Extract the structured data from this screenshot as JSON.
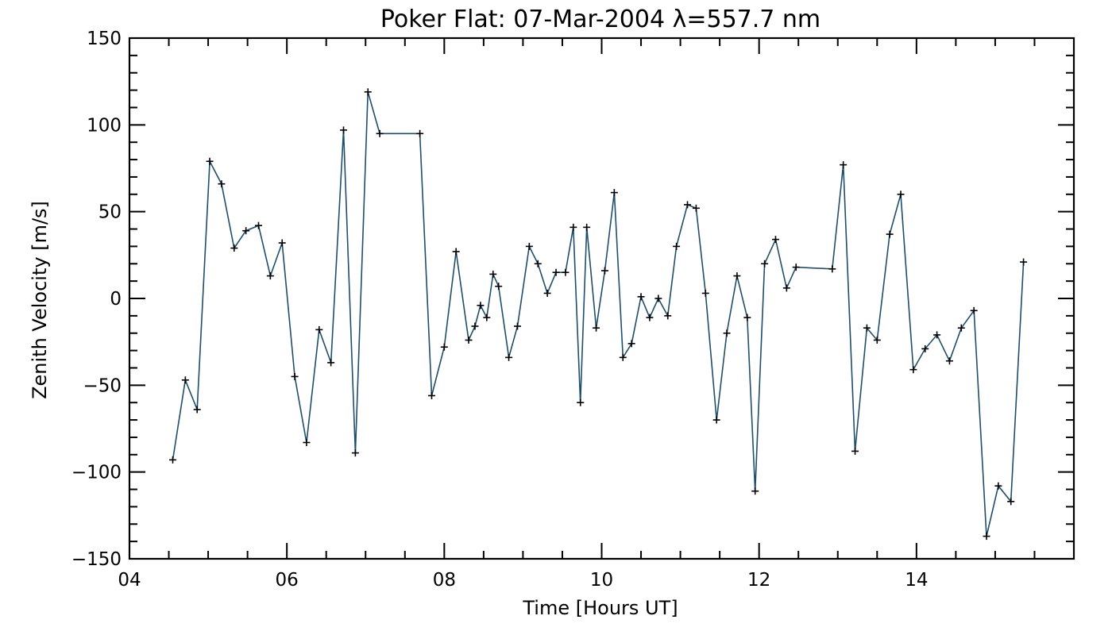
{
  "chart_data": {
    "type": "line",
    "title": "Poker Flat: 07-Mar-2004 λ=557.7 nm",
    "xlabel": "Time [Hours UT]",
    "ylabel": "Zenith Velocity [m/s]",
    "xlim": [
      4,
      16
    ],
    "ylim": [
      -150,
      150
    ],
    "x_ticks": [
      4,
      6,
      8,
      10,
      12,
      14
    ],
    "x_tick_labels": [
      "04",
      "06",
      "08",
      "10",
      "12",
      "14"
    ],
    "y_ticks": [
      -150,
      -100,
      -50,
      0,
      50,
      100,
      150
    ],
    "y_tick_labels": [
      "−150",
      "−100",
      "−50",
      "0",
      "50",
      "100",
      "150"
    ],
    "line_color": "#1f4e6b",
    "marker": "plus",
    "grid": false,
    "x": [
      4.55,
      4.71,
      4.86,
      5.02,
      5.17,
      5.33,
      5.48,
      5.64,
      5.79,
      5.94,
      6.1,
      6.25,
      6.41,
      6.56,
      6.72,
      6.87,
      7.03,
      7.18,
      7.69,
      7.84,
      8.0,
      8.15,
      8.31,
      8.39,
      8.46,
      8.54,
      8.62,
      8.69,
      8.82,
      8.93,
      9.08,
      9.19,
      9.31,
      9.42,
      9.54,
      9.64,
      9.73,
      9.81,
      9.93,
      10.04,
      10.16,
      10.27,
      10.38,
      10.5,
      10.61,
      10.72,
      10.84,
      10.95,
      11.09,
      11.2,
      11.32,
      11.46,
      11.59,
      11.72,
      11.85,
      11.95,
      12.07,
      12.21,
      12.35,
      12.47,
      12.93,
      13.07,
      13.22,
      13.37,
      13.5,
      13.66,
      13.8,
      13.96,
      14.11,
      14.26,
      14.42,
      14.57,
      14.73,
      14.89,
      15.04,
      15.2,
      15.36
    ],
    "y": [
      -93,
      -47,
      -64,
      79,
      66,
      29,
      39,
      42,
      13,
      32,
      -45,
      -83,
      -18,
      -37,
      97,
      -89,
      119,
      95,
      95,
      -56,
      -28,
      27,
      -24,
      -16,
      -4,
      -11,
      14,
      7,
      -34,
      -16,
      30,
      20,
      3,
      15,
      15,
      41,
      -60,
      41,
      -17,
      16,
      61,
      -34,
      -26,
      1,
      -11,
      0,
      -10,
      30,
      54,
      52,
      3,
      -70,
      -20,
      13,
      -11,
      -111,
      20,
      34,
      6,
      18,
      17,
      77,
      -88,
      -17,
      -24,
      37,
      60,
      -41,
      -29,
      -21,
      -36,
      -17,
      -7,
      -137,
      -108,
      -117,
      21
    ]
  }
}
